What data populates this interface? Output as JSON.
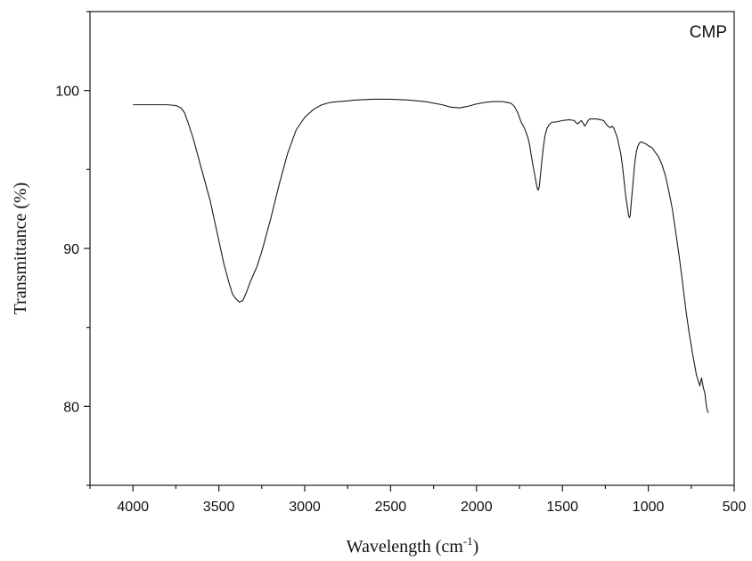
{
  "chart_data": {
    "type": "line",
    "title": "",
    "legend": {
      "label": "CMP",
      "placement": "top-right"
    },
    "xlabel": {
      "text": "Wavelength (cm",
      "sup": "-1",
      "suffix": ")"
    },
    "ylabel": "Transmittance (%)",
    "xlim": [
      4250,
      500
    ],
    "ylim": [
      75,
      105
    ],
    "x_reversed": true,
    "grid": false,
    "xticks": [
      4000,
      3500,
      3000,
      2500,
      2000,
      1500,
      1000,
      500
    ],
    "xtick_labels": [
      "4000",
      "3500",
      "3000",
      "2500",
      "2000",
      "1500",
      "1000",
      "500"
    ],
    "yticks": [
      80,
      90,
      100
    ],
    "ytick_labels": [
      "80",
      "90",
      "100"
    ],
    "line_color": "#1a1a1a",
    "series": [
      {
        "x": [
          4000,
          3900,
          3800,
          3750,
          3720,
          3700,
          3680,
          3650,
          3600,
          3550,
          3500,
          3470,
          3440,
          3420,
          3400,
          3380,
          3360,
          3340,
          3320,
          3300,
          3280,
          3250,
          3200,
          3150,
          3100,
          3050,
          3000,
          2950,
          2900,
          2850,
          2800,
          2700,
          2600,
          2500,
          2400,
          2300,
          2200,
          2150,
          2100,
          2050,
          2000,
          1950,
          1900,
          1850,
          1800,
          1780,
          1760,
          1740,
          1720,
          1700,
          1690,
          1680,
          1670,
          1660,
          1650,
          1645,
          1640,
          1635,
          1630,
          1620,
          1610,
          1600,
          1590,
          1580,
          1560,
          1540,
          1500,
          1460,
          1430,
          1420,
          1410,
          1400,
          1390,
          1380,
          1370,
          1360,
          1350,
          1340,
          1330,
          1300,
          1280,
          1260,
          1240,
          1230,
          1220,
          1210,
          1200,
          1180,
          1160,
          1150,
          1140,
          1130,
          1120,
          1115,
          1110,
          1105,
          1100,
          1090,
          1080,
          1070,
          1060,
          1050,
          1040,
          1030,
          1020,
          1010,
          1000,
          980,
          960,
          940,
          920,
          900,
          880,
          860,
          840,
          820,
          800,
          780,
          760,
          740,
          720,
          700,
          690,
          680,
          675,
          670,
          665,
          660,
          655,
          650
        ],
        "y": [
          99.1,
          99.1,
          99.1,
          99.05,
          98.9,
          98.6,
          98.0,
          97.0,
          95.0,
          93.0,
          90.5,
          89.0,
          87.8,
          87.1,
          86.8,
          86.6,
          86.7,
          87.2,
          87.8,
          88.3,
          88.8,
          89.8,
          91.8,
          94.0,
          96.0,
          97.5,
          98.3,
          98.8,
          99.1,
          99.25,
          99.3,
          99.4,
          99.45,
          99.45,
          99.4,
          99.3,
          99.1,
          98.95,
          98.9,
          99.0,
          99.15,
          99.25,
          99.3,
          99.3,
          99.2,
          99.0,
          98.6,
          98.0,
          97.6,
          97.0,
          96.5,
          95.8,
          95.2,
          94.6,
          94.0,
          93.75,
          93.7,
          93.9,
          94.4,
          95.5,
          96.5,
          97.2,
          97.6,
          97.8,
          98.0,
          98.0,
          98.1,
          98.15,
          98.1,
          97.95,
          97.9,
          98.0,
          98.1,
          97.95,
          97.75,
          97.9,
          98.1,
          98.2,
          98.2,
          98.2,
          98.15,
          98.1,
          97.8,
          97.7,
          97.65,
          97.75,
          97.6,
          97.0,
          96.0,
          95.2,
          94.2,
          93.2,
          92.5,
          92.1,
          91.95,
          92.1,
          92.8,
          94.0,
          95.3,
          96.1,
          96.5,
          96.7,
          96.75,
          96.7,
          96.65,
          96.6,
          96.5,
          96.4,
          96.1,
          95.8,
          95.3,
          94.6,
          93.6,
          92.5,
          91.0,
          89.5,
          87.8,
          86.0,
          84.5,
          83.2,
          82.0,
          81.3,
          81.8,
          81.2,
          81.0,
          80.8,
          80.3,
          79.9,
          79.7,
          79.6
        ]
      }
    ]
  }
}
